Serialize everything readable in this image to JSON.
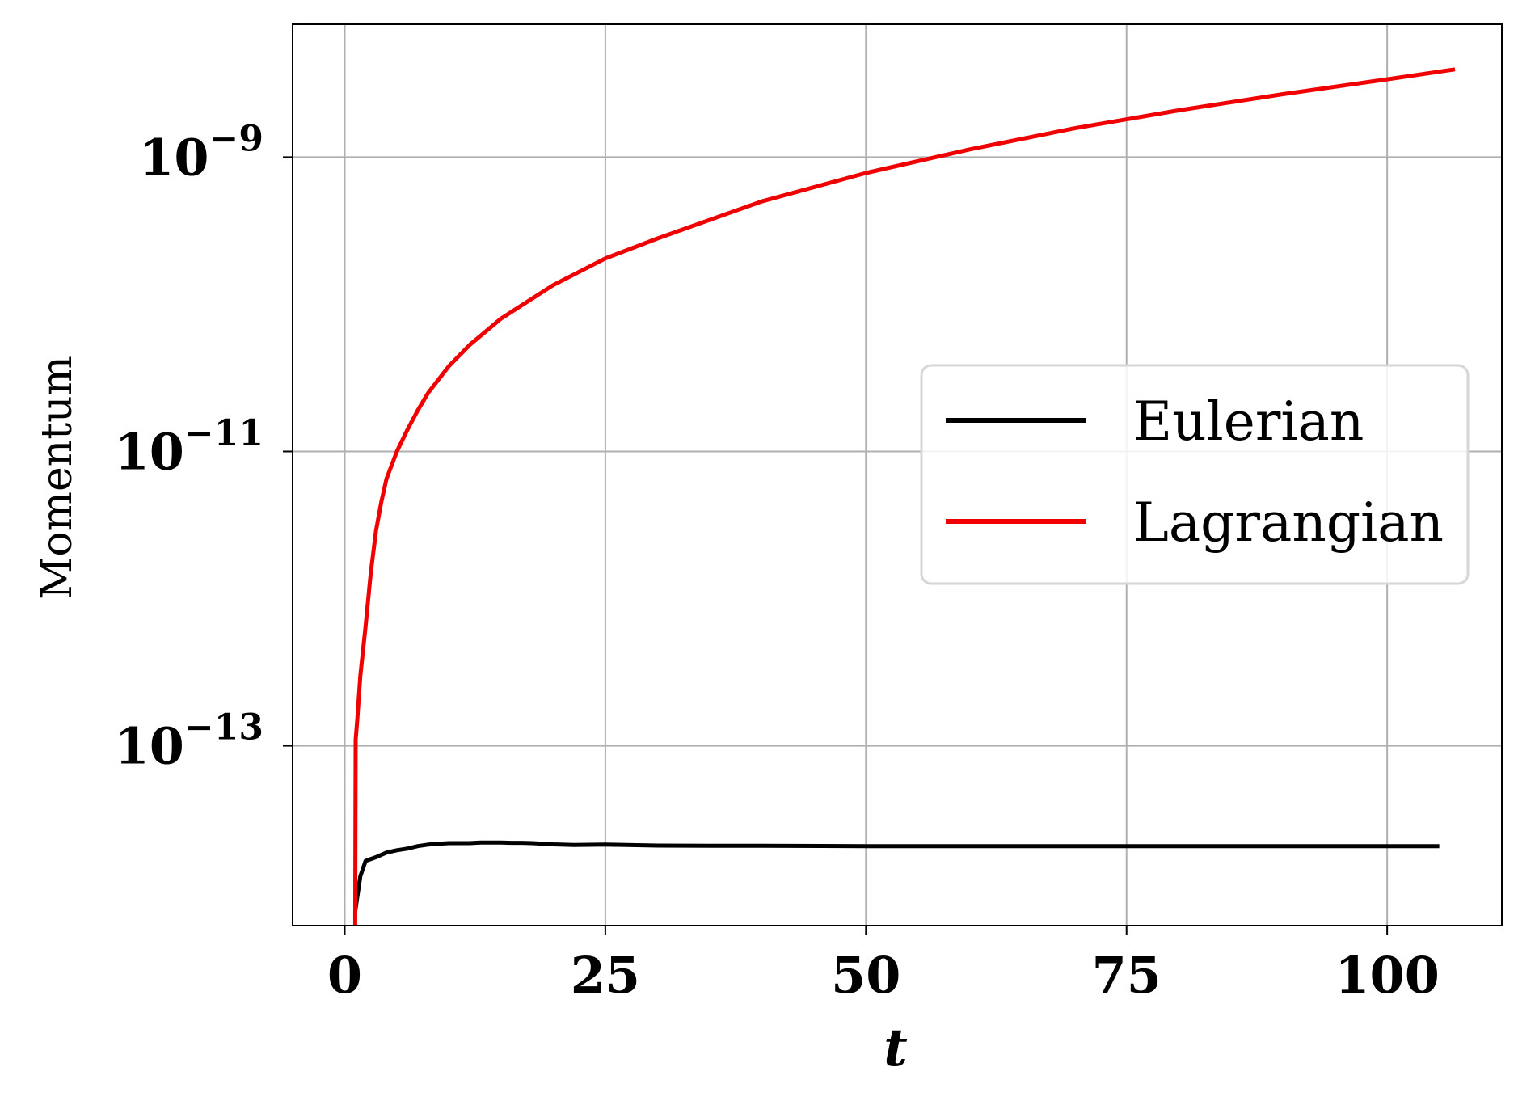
{
  "chart_data": {
    "type": "line",
    "xlabel": "t",
    "ylabel": "Momentum",
    "yscale": "log",
    "xlim": [
      -5,
      111
    ],
    "ylim": [
      6e-15,
      8e-09
    ],
    "xticks": [
      0,
      25,
      50,
      75,
      100
    ],
    "xtick_labels": [
      "0",
      "25",
      "50",
      "75",
      "100"
    ],
    "yticks": [
      1e-13,
      1e-11,
      1e-09
    ],
    "ytick_labels": [
      {
        "base": "10",
        "exp": "−13"
      },
      {
        "base": "10",
        "exp": "−11"
      },
      {
        "base": "10",
        "exp": "−9"
      }
    ],
    "grid": true,
    "legend_position": "center-right",
    "series": [
      {
        "name": "Eulerian",
        "color": "#000000",
        "x": [
          1,
          1.5,
          2,
          3,
          4,
          5,
          6,
          7,
          8,
          9,
          10,
          11,
          12,
          13,
          14,
          15,
          16,
          17,
          18,
          20,
          22,
          25,
          30,
          35,
          40,
          50,
          60,
          70,
          80,
          90,
          100,
          105
        ],
        "y": [
          7.5e-15,
          1.3e-14,
          1.65e-14,
          1.75e-14,
          1.88e-14,
          1.95e-14,
          2e-14,
          2.08e-14,
          2.13e-14,
          2.16e-14,
          2.18e-14,
          2.18e-14,
          2.18e-14,
          2.2e-14,
          2.2e-14,
          2.2e-14,
          2.19e-14,
          2.19e-14,
          2.18e-14,
          2.14e-14,
          2.12e-14,
          2.13e-14,
          2.1e-14,
          2.09e-14,
          2.09e-14,
          2.08e-14,
          2.08e-14,
          2.08e-14,
          2.08e-14,
          2.08e-14,
          2.08e-14,
          2.08e-14
        ]
      },
      {
        "name": "Lagrangian",
        "color": "#f00000",
        "x": [
          1,
          1.05,
          1.2,
          1.5,
          2,
          2.5,
          3,
          3.5,
          4,
          5,
          6,
          7,
          8,
          10,
          12,
          15,
          20,
          25,
          30,
          40,
          50,
          60,
          70,
          80,
          90,
          100,
          106.5
        ],
        "y": [
          5e-15,
          1.1e-13,
          1.5e-13,
          3e-13,
          6.5e-13,
          1.5e-12,
          2.9e-12,
          4.5e-12,
          6.5e-12,
          1e-11,
          1.4e-11,
          1.9e-11,
          2.5e-11,
          3.8e-11,
          5.3e-11,
          8e-11,
          1.35e-10,
          2.05e-10,
          2.8e-10,
          5e-10,
          7.8e-10,
          1.13e-09,
          1.57e-09,
          2.08e-09,
          2.68e-09,
          3.38e-09,
          3.95e-09
        ]
      }
    ]
  }
}
